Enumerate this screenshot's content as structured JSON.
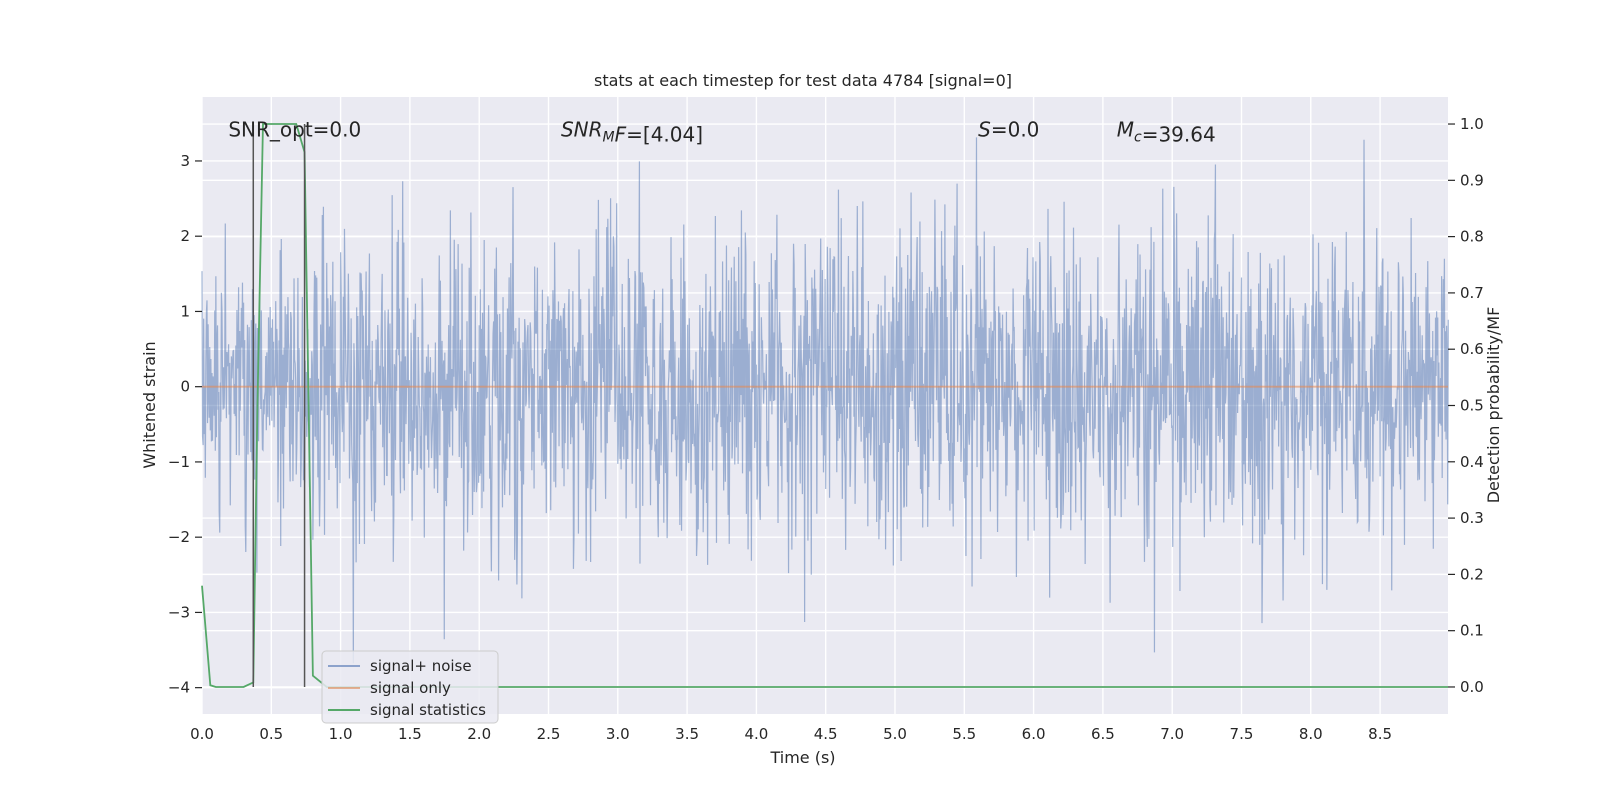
{
  "chart_data": {
    "type": "line",
    "title": "stats at each timestep for test data 4784 [signal=0]",
    "xlabel": "Time (s)",
    "ylabel": "Whitened strain",
    "y2label": "Detection probability/MF",
    "xlim": [
      0.0,
      8.99
    ],
    "ylim": [
      -4.35,
      3.85
    ],
    "y2lim": [
      -0.048,
      1.048
    ],
    "xticks": [
      0.0,
      0.5,
      1.0,
      1.5,
      2.0,
      2.5,
      3.0,
      3.5,
      4.0,
      4.5,
      5.0,
      5.5,
      6.0,
      6.5,
      7.0,
      7.5,
      8.0,
      8.5
    ],
    "xtick_labels": [
      "0.0",
      "0.5",
      "1.0",
      "1.5",
      "2.0",
      "2.5",
      "3.0",
      "3.5",
      "4.0",
      "4.5",
      "5.0",
      "5.5",
      "6.0",
      "6.5",
      "7.0",
      "7.5",
      "8.0",
      "8.5"
    ],
    "yticks": [
      3,
      2,
      1,
      0,
      -1,
      -2,
      -3,
      -4
    ],
    "ytick_labels": [
      "3",
      "2",
      "1",
      "0",
      "−1",
      "−2",
      "−3",
      "−4"
    ],
    "y2ticks": [
      1.0,
      0.9,
      0.8,
      0.7,
      0.6,
      0.5,
      0.4,
      0.3,
      0.2,
      0.1,
      0.0
    ],
    "y2tick_labels": [
      "1.0",
      "0.9",
      "0.8",
      "0.7",
      "0.6",
      "0.5",
      "0.4",
      "0.3",
      "0.2",
      "0.1",
      "0.0"
    ],
    "grid": true,
    "annotations": [
      {
        "base": "SNR_opt=0.0",
        "sub": "",
        "rest": "",
        "italic": false,
        "x": 0.19
      },
      {
        "base": "SNR",
        "sub": "M",
        "rest": "F=[4.04]",
        "italic": true,
        "x": 2.59
      },
      {
        "base": "S",
        "sub": "",
        "rest": "=0.0",
        "italic": true,
        "x": 5.6
      },
      {
        "base": "M",
        "sub": "c",
        "rest": "=39.64",
        "italic": true,
        "x": 6.6
      }
    ],
    "annotation_y": 3.42,
    "vlines": [
      0.37,
      0.74
    ],
    "noise": {
      "dt": 0.004,
      "t_end": 8.99,
      "sigma": 1.0,
      "seed": 4784,
      "y_clip": [
        -4.0,
        3.5
      ]
    },
    "series": [
      {
        "name": "signal+ noise",
        "color": "#4c72b0",
        "opacity": 0.5,
        "axis": "left",
        "kind": "noise"
      },
      {
        "name": "signal only",
        "color": "#dd8452",
        "opacity": 0.6,
        "axis": "left",
        "x": [
          0.0,
          8.99
        ],
        "y": [
          0.0,
          0.0
        ]
      },
      {
        "name": "signal statistics",
        "color": "#55a868",
        "opacity": 1.0,
        "axis": "right",
        "x": [
          0.0,
          0.06,
          0.1,
          0.2,
          0.3,
          0.37,
          0.4,
          0.44,
          0.48,
          0.6,
          0.68,
          0.74,
          0.8,
          0.9,
          1.0,
          1.5,
          2.0,
          3.0,
          4.0,
          5.0,
          6.0,
          7.0,
          8.0,
          8.99
        ],
        "y": [
          0.18,
          0.003,
          0.0,
          0.0,
          0.0,
          0.008,
          0.5,
          1.0,
          1.0,
          1.0,
          1.0,
          0.95,
          0.02,
          0.0,
          0.0,
          0.0,
          0.0,
          0.0,
          0.0,
          0.0,
          0.0,
          0.0,
          0.0,
          0.0
        ]
      }
    ],
    "legend_position": "lower-left"
  },
  "colors": {
    "plot_background": "#eaeaf2",
    "grid": "#ffffff",
    "vline": "#555555"
  }
}
